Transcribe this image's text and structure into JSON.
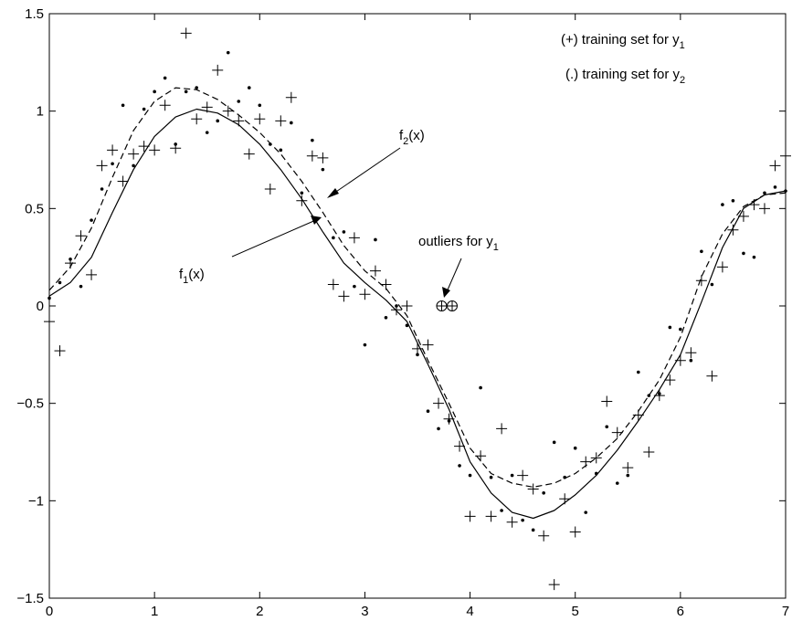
{
  "chart_data": {
    "type": "scatter",
    "title": "",
    "xlabel": "",
    "ylabel": "",
    "xlim": [
      0,
      7
    ],
    "ylim": [
      -1.5,
      1.5
    ],
    "grid": false,
    "x_ticks": [
      0,
      1,
      2,
      3,
      4,
      5,
      6,
      7
    ],
    "y_ticks": [
      -1.5,
      -1,
      -0.5,
      0,
      0.5,
      1,
      1.5
    ],
    "x_tick_labels": [
      "0",
      "1",
      "2",
      "3",
      "4",
      "5",
      "6",
      "7"
    ],
    "y_tick_labels": [
      "−1.5",
      "−1",
      "−0.5",
      "0",
      "0.5",
      "1",
      "1.5"
    ],
    "legend": [
      {
        "text": "(+) training set for y",
        "subscript": "1"
      },
      {
        "text": "(.) training set for y",
        "subscript": "2"
      }
    ],
    "annotations": {
      "f2": {
        "text": "f",
        "subscript": "2",
        "suffix": "(x)"
      },
      "f1": {
        "text": "f",
        "subscript": "1",
        "suffix": "(x)"
      },
      "outliers": {
        "text": "outliers for y",
        "subscript": "1"
      }
    },
    "series": [
      {
        "marker": "plus",
        "points": [
          [
            0,
            -0.08
          ],
          [
            0.1,
            -0.23
          ],
          [
            0.2,
            0.22
          ],
          [
            0.3,
            0.36
          ],
          [
            0.4,
            0.16
          ],
          [
            0.5,
            0.72
          ],
          [
            0.6,
            0.8
          ],
          [
            0.7,
            0.64
          ],
          [
            0.8,
            0.78
          ],
          [
            0.9,
            0.82
          ],
          [
            1.0,
            0.8
          ],
          [
            1.1,
            1.03
          ],
          [
            1.2,
            0.81
          ],
          [
            1.3,
            1.4
          ],
          [
            1.4,
            0.96
          ],
          [
            1.5,
            1.02
          ],
          [
            1.6,
            1.21
          ],
          [
            1.7,
            1.0
          ],
          [
            1.8,
            0.95
          ],
          [
            1.9,
            0.78
          ],
          [
            2.0,
            0.96
          ],
          [
            2.1,
            0.6
          ],
          [
            2.2,
            0.95
          ],
          [
            2.3,
            1.07
          ],
          [
            2.4,
            0.54
          ],
          [
            2.5,
            0.77
          ],
          [
            2.6,
            0.76
          ],
          [
            2.7,
            0.11
          ],
          [
            2.8,
            0.05
          ],
          [
            2.9,
            0.35
          ],
          [
            3.0,
            0.06
          ],
          [
            3.1,
            0.18
          ],
          [
            3.2,
            0.11
          ],
          [
            3.3,
            -0.02
          ],
          [
            3.4,
            0.0
          ],
          [
            3.5,
            -0.22
          ],
          [
            3.6,
            -0.2
          ],
          [
            3.7,
            -0.5
          ],
          [
            3.8,
            -0.58
          ],
          [
            3.9,
            -0.72
          ],
          [
            4.0,
            -1.08
          ],
          [
            4.1,
            -0.77
          ],
          [
            4.2,
            -1.08
          ],
          [
            4.3,
            -0.63
          ],
          [
            4.4,
            -1.11
          ],
          [
            4.5,
            -0.87
          ],
          [
            4.6,
            -0.94
          ],
          [
            4.7,
            -1.18
          ],
          [
            4.8,
            -1.43
          ],
          [
            4.9,
            -0.99
          ],
          [
            5.0,
            -1.16
          ],
          [
            5.1,
            -0.8
          ],
          [
            5.2,
            -0.78
          ],
          [
            5.3,
            -0.49
          ],
          [
            5.4,
            -0.65
          ],
          [
            5.5,
            -0.83
          ],
          [
            5.6,
            -0.56
          ],
          [
            5.7,
            -0.75
          ],
          [
            5.8,
            -0.46
          ],
          [
            5.9,
            -0.38
          ],
          [
            6.0,
            -0.28
          ],
          [
            6.1,
            -0.24
          ],
          [
            6.2,
            0.13
          ],
          [
            6.3,
            -0.36
          ],
          [
            6.4,
            0.2
          ],
          [
            6.5,
            0.39
          ],
          [
            6.6,
            0.46
          ],
          [
            6.7,
            0.52
          ],
          [
            6.8,
            0.5
          ],
          [
            6.9,
            0.72
          ],
          [
            7.0,
            0.77
          ]
        ]
      },
      {
        "marker": "dot",
        "points": [
          [
            0,
            0.04
          ],
          [
            0.1,
            0.12
          ],
          [
            0.2,
            0.24
          ],
          [
            0.3,
            0.1
          ],
          [
            0.4,
            0.44
          ],
          [
            0.5,
            0.6
          ],
          [
            0.6,
            0.73
          ],
          [
            0.7,
            1.03
          ],
          [
            0.8,
            0.72
          ],
          [
            0.9,
            1.01
          ],
          [
            1.0,
            1.1
          ],
          [
            1.1,
            1.17
          ],
          [
            1.2,
            0.83
          ],
          [
            1.3,
            1.1
          ],
          [
            1.4,
            1.12
          ],
          [
            1.5,
            0.89
          ],
          [
            1.6,
            0.95
          ],
          [
            1.7,
            1.3
          ],
          [
            1.8,
            1.05
          ],
          [
            1.9,
            1.12
          ],
          [
            2.0,
            1.03
          ],
          [
            2.1,
            0.83
          ],
          [
            2.2,
            0.8
          ],
          [
            2.3,
            0.94
          ],
          [
            2.4,
            0.58
          ],
          [
            2.5,
            0.85
          ],
          [
            2.6,
            0.7
          ],
          [
            2.7,
            0.35
          ],
          [
            2.8,
            0.38
          ],
          [
            2.9,
            0.1
          ],
          [
            3.0,
            -0.2
          ],
          [
            3.1,
            0.34
          ],
          [
            3.2,
            -0.06
          ],
          [
            3.3,
            0.0
          ],
          [
            3.4,
            -0.1
          ],
          [
            3.5,
            -0.25
          ],
          [
            3.6,
            -0.54
          ],
          [
            3.7,
            -0.63
          ],
          [
            3.8,
            -0.59
          ],
          [
            3.9,
            -0.82
          ],
          [
            4.0,
            -0.87
          ],
          [
            4.1,
            -0.42
          ],
          [
            4.2,
            -0.88
          ],
          [
            4.3,
            -1.05
          ],
          [
            4.4,
            -0.87
          ],
          [
            4.5,
            -1.1
          ],
          [
            4.6,
            -1.15
          ],
          [
            4.7,
            -0.96
          ],
          [
            4.8,
            -0.7
          ],
          [
            4.9,
            -0.88
          ],
          [
            5.0,
            -0.73
          ],
          [
            5.1,
            -1.06
          ],
          [
            5.2,
            -0.86
          ],
          [
            5.3,
            -0.62
          ],
          [
            5.4,
            -0.91
          ],
          [
            5.5,
            -0.87
          ],
          [
            5.6,
            -0.34
          ],
          [
            5.7,
            -0.46
          ],
          [
            5.8,
            -0.45
          ],
          [
            5.9,
            -0.11
          ],
          [
            6.0,
            -0.12
          ],
          [
            6.1,
            -0.28
          ],
          [
            6.2,
            0.28
          ],
          [
            6.3,
            0.11
          ],
          [
            6.4,
            0.52
          ],
          [
            6.5,
            0.54
          ],
          [
            6.6,
            0.27
          ],
          [
            6.7,
            0.25
          ],
          [
            6.8,
            0.58
          ],
          [
            6.9,
            0.61
          ],
          [
            7.0,
            0.59
          ]
        ]
      },
      {
        "marker": "outlier",
        "points": [
          [
            3.73,
            0.0
          ],
          [
            3.83,
            0.0
          ]
        ]
      },
      {
        "marker": "line-solid",
        "points": [
          [
            0,
            0.05
          ],
          [
            0.2,
            0.12
          ],
          [
            0.4,
            0.25
          ],
          [
            0.6,
            0.48
          ],
          [
            0.8,
            0.7
          ],
          [
            1.0,
            0.87
          ],
          [
            1.2,
            0.97
          ],
          [
            1.4,
            1.01
          ],
          [
            1.6,
            0.99
          ],
          [
            1.8,
            0.93
          ],
          [
            2.0,
            0.83
          ],
          [
            2.2,
            0.7
          ],
          [
            2.4,
            0.55
          ],
          [
            2.6,
            0.38
          ],
          [
            2.8,
            0.22
          ],
          [
            3.0,
            0.12
          ],
          [
            3.2,
            0.03
          ],
          [
            3.4,
            -0.08
          ],
          [
            3.6,
            -0.3
          ],
          [
            3.8,
            -0.53
          ],
          [
            4.0,
            -0.8
          ],
          [
            4.2,
            -0.96
          ],
          [
            4.4,
            -1.06
          ],
          [
            4.6,
            -1.09
          ],
          [
            4.8,
            -1.05
          ],
          [
            5.0,
            -0.97
          ],
          [
            5.2,
            -0.87
          ],
          [
            5.4,
            -0.74
          ],
          [
            5.6,
            -0.59
          ],
          [
            5.8,
            -0.43
          ],
          [
            6.0,
            -0.25
          ],
          [
            6.2,
            0.02
          ],
          [
            6.4,
            0.3
          ],
          [
            6.6,
            0.5
          ],
          [
            6.8,
            0.57
          ],
          [
            7.0,
            0.59
          ]
        ]
      },
      {
        "marker": "line-dashed",
        "points": [
          [
            0,
            0.08
          ],
          [
            0.2,
            0.2
          ],
          [
            0.4,
            0.4
          ],
          [
            0.6,
            0.66
          ],
          [
            0.8,
            0.9
          ],
          [
            1.0,
            1.05
          ],
          [
            1.2,
            1.12
          ],
          [
            1.4,
            1.11
          ],
          [
            1.6,
            1.06
          ],
          [
            1.8,
            0.98
          ],
          [
            2.0,
            0.89
          ],
          [
            2.2,
            0.78
          ],
          [
            2.4,
            0.64
          ],
          [
            2.6,
            0.48
          ],
          [
            2.8,
            0.31
          ],
          [
            3.0,
            0.18
          ],
          [
            3.2,
            0.09
          ],
          [
            3.4,
            -0.05
          ],
          [
            3.6,
            -0.28
          ],
          [
            3.8,
            -0.5
          ],
          [
            4.0,
            -0.73
          ],
          [
            4.2,
            -0.86
          ],
          [
            4.4,
            -0.91
          ],
          [
            4.6,
            -0.93
          ],
          [
            4.8,
            -0.91
          ],
          [
            5.0,
            -0.86
          ],
          [
            5.2,
            -0.78
          ],
          [
            5.4,
            -0.68
          ],
          [
            5.6,
            -0.54
          ],
          [
            5.8,
            -0.38
          ],
          [
            6.0,
            -0.16
          ],
          [
            6.2,
            0.15
          ],
          [
            6.4,
            0.37
          ],
          [
            6.6,
            0.51
          ],
          [
            6.8,
            0.57
          ],
          [
            7.0,
            0.58
          ]
        ]
      }
    ]
  }
}
